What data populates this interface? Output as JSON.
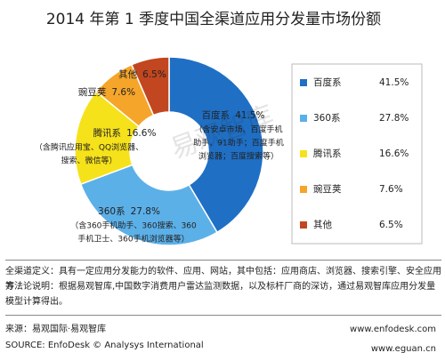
{
  "chart_data": {
    "type": "donut",
    "title": "2014 年第 1 季度中国全渠道应用分发量市场份额",
    "categories": [
      "百度系",
      "360系",
      "腾讯系",
      "豌豆荚",
      "其他"
    ],
    "values": [
      41.5,
      27.8,
      16.6,
      7.6,
      6.5
    ],
    "value_labels": [
      "41.5%",
      "27.8%",
      "16.6%",
      "7.6%",
      "6.5%"
    ],
    "colors": [
      "#1f6fc5",
      "#5cb0e8",
      "#f6e21a",
      "#f5a52a",
      "#c2461f"
    ],
    "annotations": [
      [
        "（含安卓市场、百度手机",
        "助手、91助手；百度手机",
        "浏览器；百度搜索等）"
      ],
      [
        "（含360手机助手、360搜索、360",
        "手机卫士、360手机浏览器等）"
      ],
      [
        "（含腾讯应用宝、QQ浏览器、",
        "搜索、微信等）"
      ],
      null,
      null
    ],
    "watermark": "易观智库"
  },
  "footer": {
    "definition": "全渠道定义：具有一定应用分发能力的软件、应用、网站，其中包括：应用商店、浏览器、搜索引擎、安全应用等",
    "method": "方法论说明：根据易观智库,中国数字消费用户雷达监测数据，以及标杆厂商的深访，通过易观智库应用分发量模型计算得出。",
    "source_cn": "来源：易观国际·易观智库",
    "source_en": "SOURCE: EnfoDesk © Analysys International",
    "site1": "www.enfodesk.com",
    "site2": "www.eguan.cn"
  }
}
